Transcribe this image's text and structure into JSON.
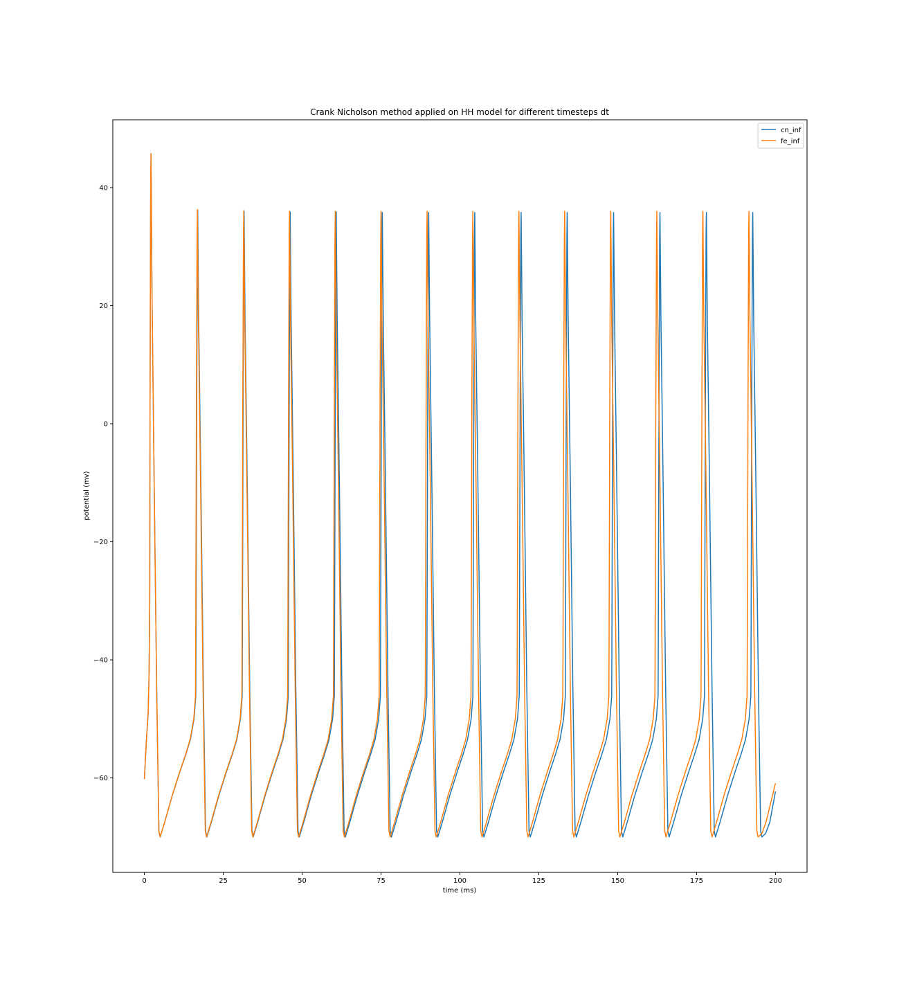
{
  "chart_data": {
    "type": "line",
    "title": "Crank Nicholson method applied on HH model for different timesteps dt",
    "xlabel": "time (ms)",
    "ylabel": "potential (mv)",
    "xlim": [
      -10,
      210
    ],
    "ylim": [
      -76,
      51.5
    ],
    "xticks": [
      0,
      25,
      50,
      75,
      100,
      125,
      150,
      175,
      200
    ],
    "yticks": [
      -60,
      -40,
      -20,
      0,
      20,
      40
    ],
    "grid": false,
    "legend_position": "top-right",
    "series": [
      {
        "name": "cn_inf",
        "color": "#1f77b4",
        "spike_times": [
          2.1,
          16.9,
          31.6,
          46.2,
          60.8,
          75.4,
          90.1,
          104.7,
          119.4,
          134.0,
          148.7,
          163.4,
          178.1,
          192.8
        ],
        "peaks": [
          45.7,
          36.2,
          36.0,
          35.9,
          35.9,
          35.8,
          35.8,
          35.8,
          35.8,
          35.8,
          35.8,
          35.8,
          35.8,
          35.8
        ],
        "start_value": -60.2,
        "end_value": -62.3,
        "trough_value": -70.0
      },
      {
        "name": "fe_inf",
        "color": "#ff7f0e",
        "spike_times": [
          2.1,
          16.8,
          31.5,
          46.0,
          60.5,
          75.0,
          89.6,
          104.1,
          118.7,
          133.2,
          147.8,
          162.4,
          177.0,
          191.6
        ],
        "peaks": [
          45.8,
          36.3,
          36.1,
          36.0,
          36.0,
          36.0,
          36.0,
          36.0,
          36.0,
          36.0,
          36.0,
          36.0,
          36.0,
          36.0
        ],
        "start_value": -60.2,
        "end_value": -60.9,
        "trough_value": -70.0
      }
    ]
  }
}
